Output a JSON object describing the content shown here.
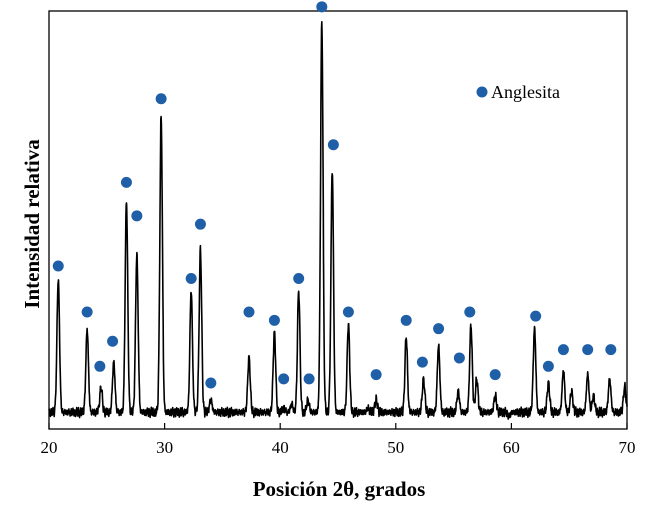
{
  "chart_data": {
    "type": "line",
    "title": "",
    "xlabel": "Posición 2θ, grados",
    "ylabel": "Intensidad relativa",
    "xlim": [
      20,
      70
    ],
    "ylim": [
      0,
      100
    ],
    "xticks": [
      20,
      30,
      40,
      50,
      60,
      70
    ],
    "yticks_shown": false,
    "grid": false,
    "legend": {
      "position": "top-right",
      "entries": [
        "Anglesita"
      ]
    },
    "colors": {
      "pattern": "#000000",
      "marker": "#1f5fa8"
    },
    "series": [
      {
        "kind": "diffractogram",
        "baseline": 4,
        "peaks": [
          {
            "x": 20.8,
            "y": 36
          },
          {
            "x": 23.3,
            "y": 24
          },
          {
            "x": 24.5,
            "y": 10
          },
          {
            "x": 25.6,
            "y": 16
          },
          {
            "x": 26.7,
            "y": 55
          },
          {
            "x": 27.6,
            "y": 42
          },
          {
            "x": 29.7,
            "y": 75
          },
          {
            "x": 32.3,
            "y": 33
          },
          {
            "x": 33.1,
            "y": 43
          },
          {
            "x": 34.0,
            "y": 7
          },
          {
            "x": 37.3,
            "y": 17
          },
          {
            "x": 39.5,
            "y": 23
          },
          {
            "x": 40.3,
            "y": 5
          },
          {
            "x": 41.0,
            "y": 6
          },
          {
            "x": 41.6,
            "y": 33
          },
          {
            "x": 42.4,
            "y": 7
          },
          {
            "x": 43.6,
            "y": 97
          },
          {
            "x": 44.5,
            "y": 62
          },
          {
            "x": 45.9,
            "y": 25
          },
          {
            "x": 47.6,
            "y": 5
          },
          {
            "x": 48.3,
            "y": 7
          },
          {
            "x": 50.9,
            "y": 22
          },
          {
            "x": 52.4,
            "y": 12
          },
          {
            "x": 53.7,
            "y": 20
          },
          {
            "x": 55.4,
            "y": 9
          },
          {
            "x": 56.5,
            "y": 25
          },
          {
            "x": 57.0,
            "y": 12
          },
          {
            "x": 58.6,
            "y": 8
          },
          {
            "x": 59.8,
            "y": 3
          },
          {
            "x": 62.0,
            "y": 24
          },
          {
            "x": 63.2,
            "y": 11
          },
          {
            "x": 64.5,
            "y": 14
          },
          {
            "x": 65.2,
            "y": 9
          },
          {
            "x": 66.6,
            "y": 13
          },
          {
            "x": 67.1,
            "y": 8
          },
          {
            "x": 68.5,
            "y": 12
          },
          {
            "x": 69.8,
            "y": 10
          }
        ]
      },
      {
        "name": "Anglesita",
        "kind": "markers",
        "points": [
          {
            "x": 20.8,
            "y": 39
          },
          {
            "x": 23.3,
            "y": 28
          },
          {
            "x": 24.4,
            "y": 15
          },
          {
            "x": 25.5,
            "y": 21
          },
          {
            "x": 26.7,
            "y": 59
          },
          {
            "x": 27.6,
            "y": 51
          },
          {
            "x": 29.7,
            "y": 79
          },
          {
            "x": 32.3,
            "y": 36
          },
          {
            "x": 33.1,
            "y": 49
          },
          {
            "x": 34.0,
            "y": 11
          },
          {
            "x": 37.3,
            "y": 28
          },
          {
            "x": 39.5,
            "y": 26
          },
          {
            "x": 40.3,
            "y": 12
          },
          {
            "x": 41.6,
            "y": 36
          },
          {
            "x": 42.5,
            "y": 12
          },
          {
            "x": 43.6,
            "y": 101
          },
          {
            "x": 44.6,
            "y": 68
          },
          {
            "x": 45.9,
            "y": 28
          },
          {
            "x": 48.3,
            "y": 13
          },
          {
            "x": 50.9,
            "y": 26
          },
          {
            "x": 52.3,
            "y": 16
          },
          {
            "x": 53.7,
            "y": 24
          },
          {
            "x": 55.5,
            "y": 17
          },
          {
            "x": 56.4,
            "y": 28
          },
          {
            "x": 58.6,
            "y": 13
          },
          {
            "x": 62.1,
            "y": 27
          },
          {
            "x": 63.2,
            "y": 15
          },
          {
            "x": 64.5,
            "y": 19
          },
          {
            "x": 66.6,
            "y": 19
          },
          {
            "x": 68.6,
            "y": 19
          }
        ]
      }
    ]
  }
}
